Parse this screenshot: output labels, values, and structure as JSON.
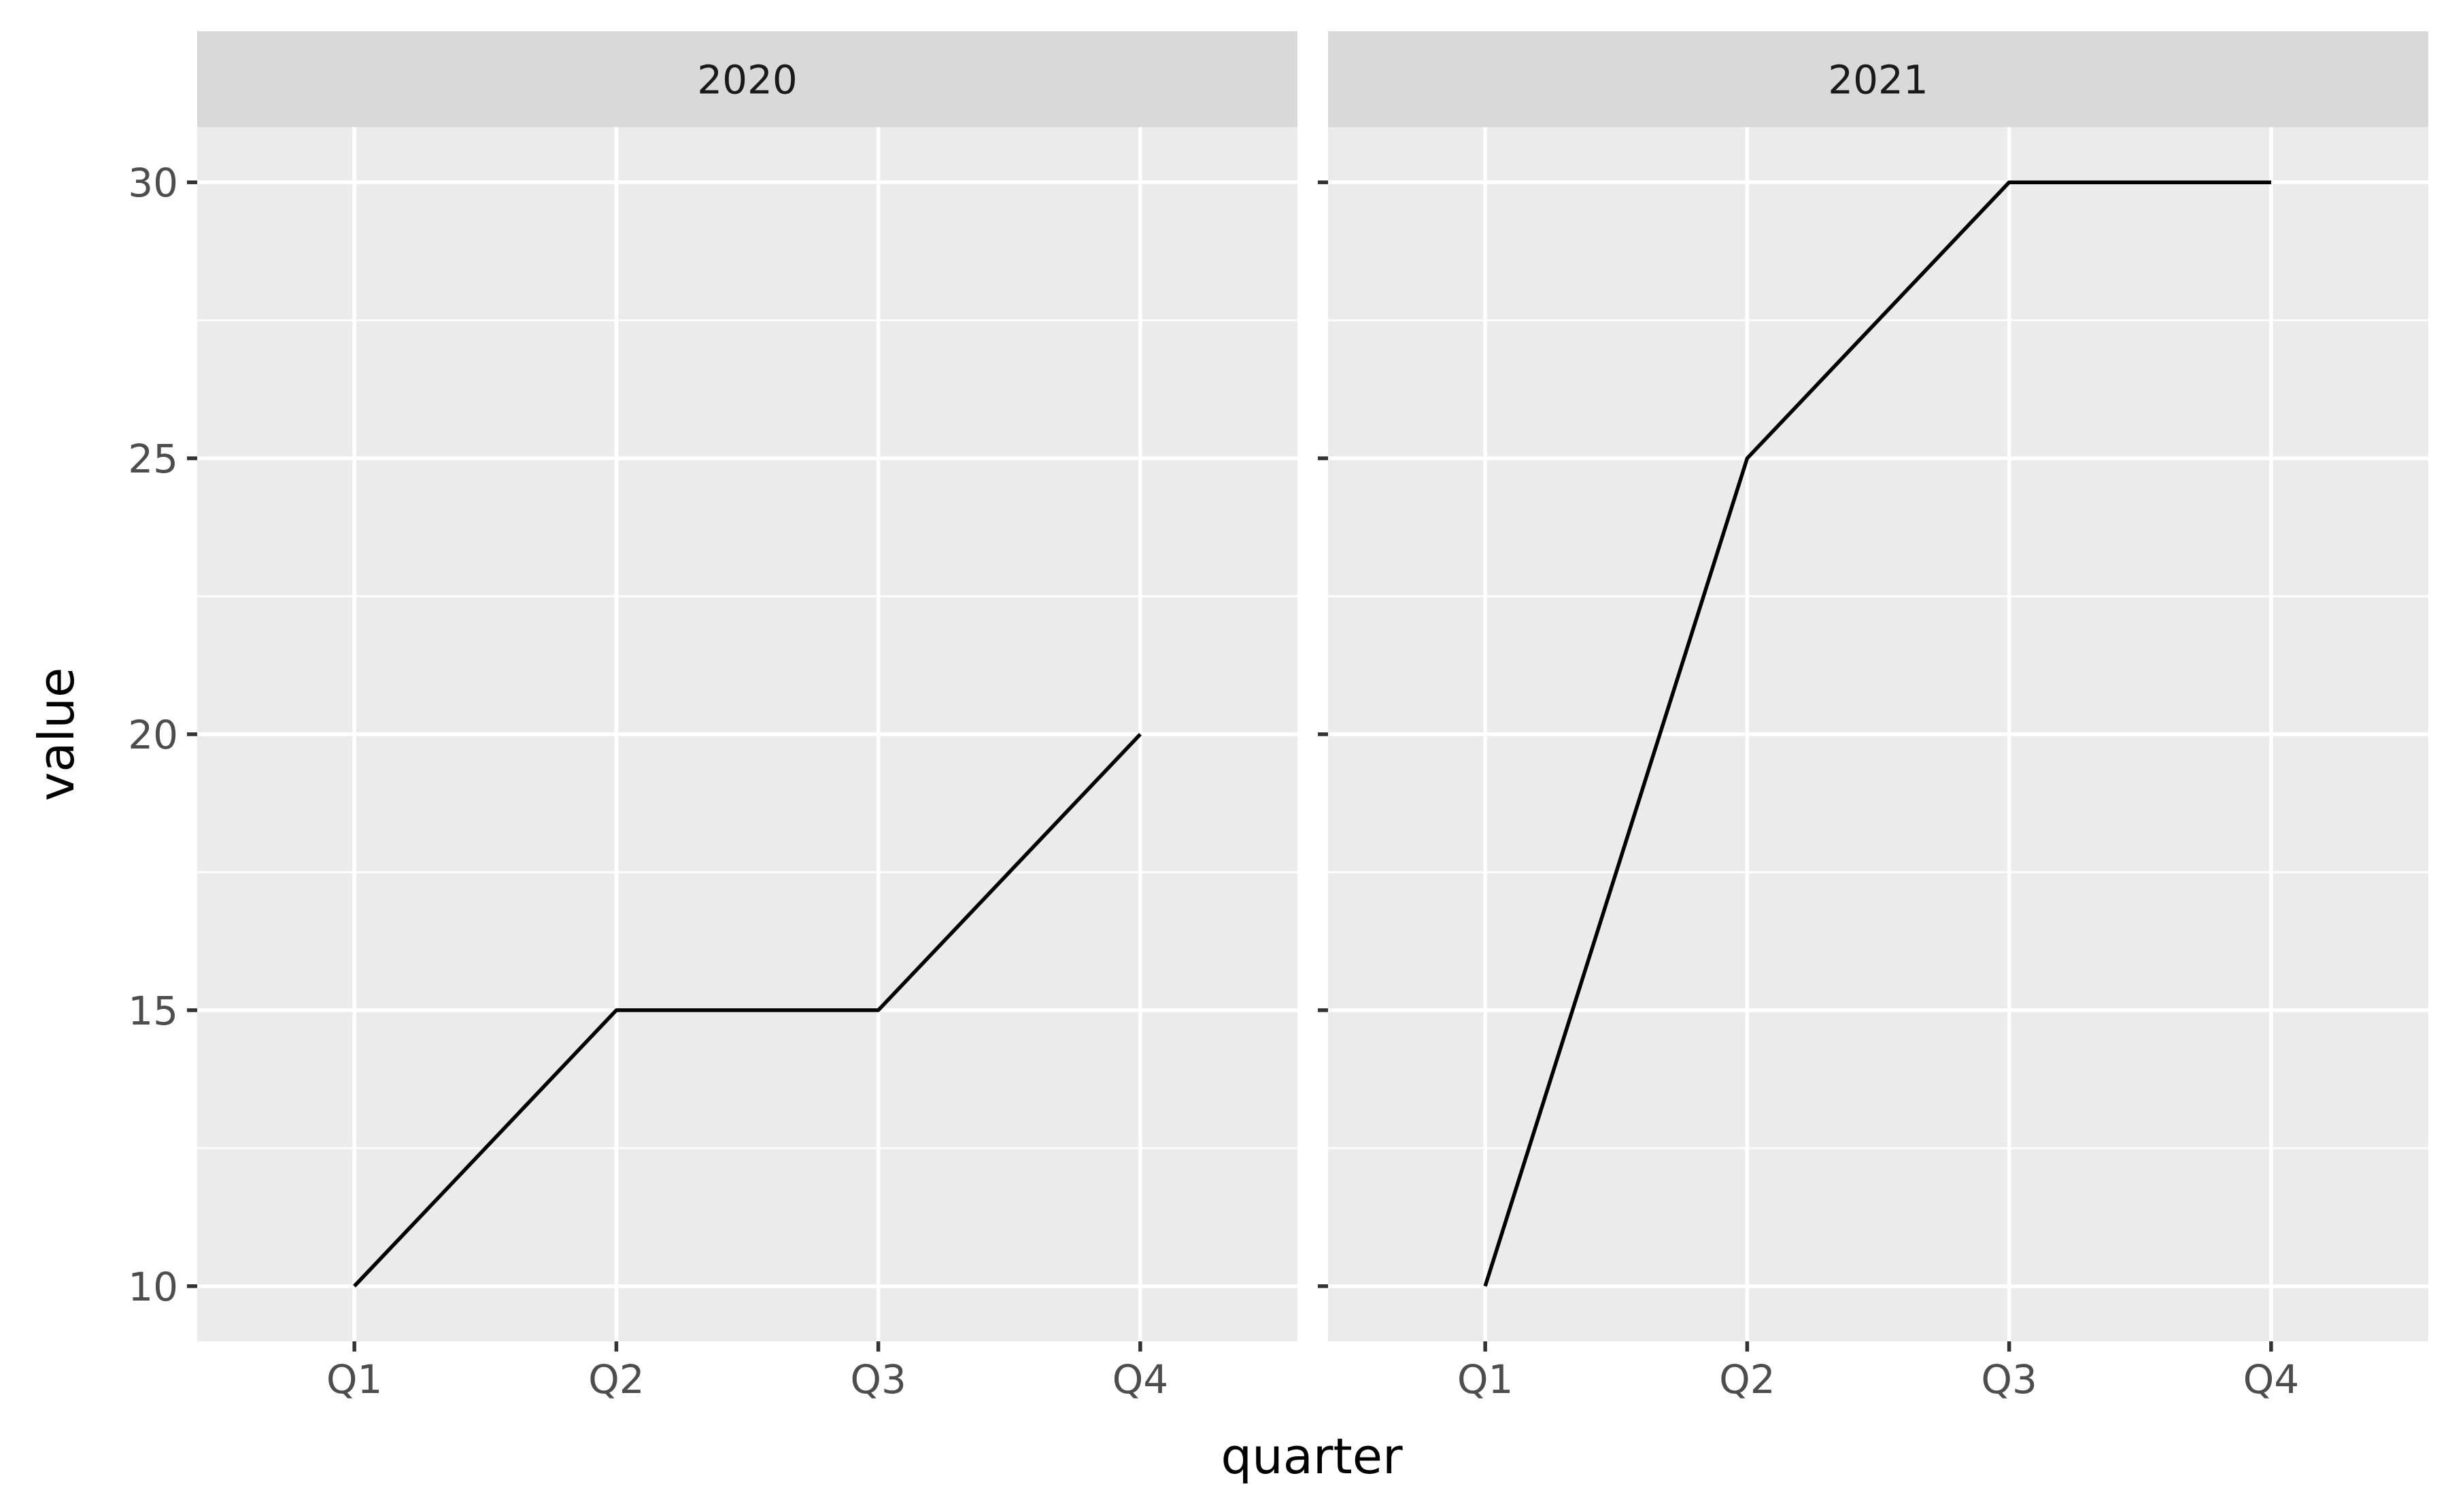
{
  "chart_data": {
    "type": "line",
    "xlabel": "quarter",
    "ylabel": "value",
    "categories": [
      "Q1",
      "Q2",
      "Q3",
      "Q4"
    ],
    "y_ticks": [
      10,
      15,
      20,
      25,
      30
    ],
    "ylim": [
      9,
      31
    ],
    "grid": true,
    "line_color": "#000000",
    "facets": [
      {
        "strip_label": "2020",
        "values": [
          10,
          15,
          15,
          20
        ]
      },
      {
        "strip_label": "2021",
        "values": [
          10,
          25,
          30,
          30
        ]
      }
    ]
  }
}
